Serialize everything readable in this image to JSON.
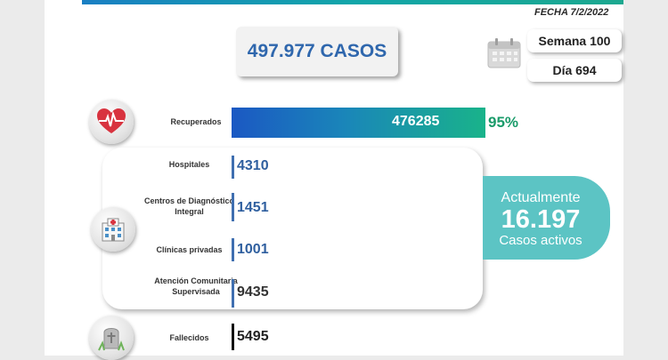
{
  "header": {
    "fecha": "FECHA 7/2/2022"
  },
  "summary": {
    "casos": "497.977 CASOS",
    "semana": "Semana 100",
    "dia": "Día 694"
  },
  "recuperados": {
    "label": "Recuperados",
    "value": "476285",
    "percent": "95%",
    "fraction": 0.95
  },
  "activos_group": {
    "hospitales": {
      "label": "Hospitales",
      "value": "4310"
    },
    "cdi": {
      "label": "Centros de Diagnóstico Integral",
      "value": "1451"
    },
    "clinicas": {
      "label": "Clínicas privadas",
      "value": "1001"
    },
    "acs": {
      "label": "Atención Comunitaria Supervisada",
      "value": "9435"
    }
  },
  "activos": {
    "line1": "Actualmente",
    "number": "16.197",
    "line2": "Casos activos"
  },
  "fallecidos": {
    "label": "Fallecidos",
    "value": "5495"
  },
  "colors": {
    "blue": "#2f67ad",
    "teal": "#5cc4c4",
    "green": "#1a9b6a"
  },
  "icons": [
    "heart-monitor-icon",
    "hospital-icon",
    "tombstone-icon",
    "calendar-icon"
  ]
}
